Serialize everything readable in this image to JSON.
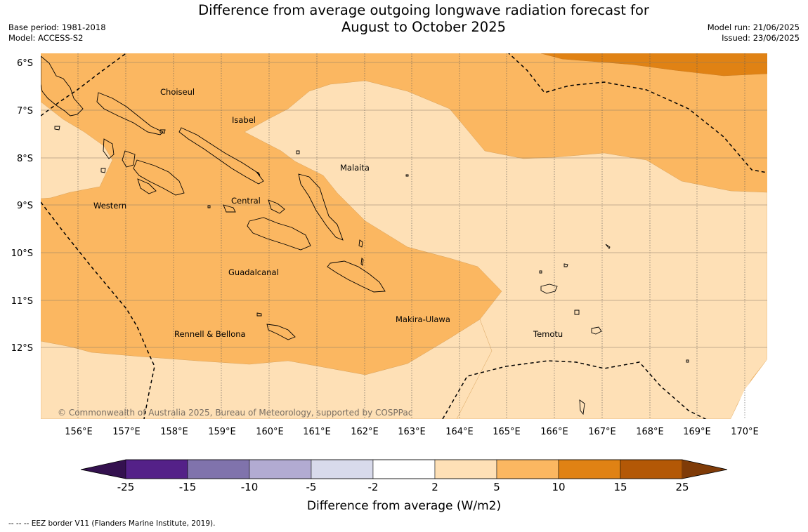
{
  "title_line1": "Difference from average outgoing longwave radiation forecast for",
  "title_line2": "August to October 2025",
  "base_period": "Base period: 1981-2018",
  "model": "Model: ACCESS-S2",
  "model_run": "Model run: 21/06/2025",
  "issued": "Issued: 23/06/2025",
  "copyright": "© Commonwealth of Australia 2025, Bureau of Meteorology, supported by COSPPac",
  "footnote": "-- -- -- EEZ border V11 (Flanders Marine Institute, 2019).",
  "lat_labels": [
    "6°S",
    "7°S",
    "8°S",
    "9°S",
    "10°S",
    "11°S",
    "12°S"
  ],
  "lon_labels": [
    "156°E",
    "157°E",
    "158°E",
    "159°E",
    "160°E",
    "161°E",
    "162°E",
    "163°E",
    "164°E",
    "165°E",
    "166°E",
    "167°E",
    "168°E",
    "169°E",
    "170°E"
  ],
  "places": [
    {
      "name": "Choiseul"
    },
    {
      "name": "Isabel"
    },
    {
      "name": "Malaita"
    },
    {
      "name": "Central"
    },
    {
      "name": "Western"
    },
    {
      "name": "Guadalcanal"
    },
    {
      "name": "Makira-Ulawa"
    },
    {
      "name": "Rennell & Bellona"
    },
    {
      "name": "Temotu"
    }
  ],
  "colorbar": {
    "label": "Difference from average (W/m2)",
    "ticks": [
      "-25",
      "-15",
      "-10",
      "-5",
      "-2",
      "2",
      "5",
      "10",
      "15",
      "25"
    ],
    "colors": [
      "#34114f",
      "#542188",
      "#8073ac",
      "#b2abd2",
      "#d8daeb",
      "#ffffff",
      "#fee0b6",
      "#fbb761",
      "#e08214",
      "#b35806",
      "#7f3b08"
    ]
  },
  "map_colors": {
    "band_2_5": "#fee0b6",
    "band_5_10": "#fbb761",
    "band_10_15": "#e08214"
  }
}
